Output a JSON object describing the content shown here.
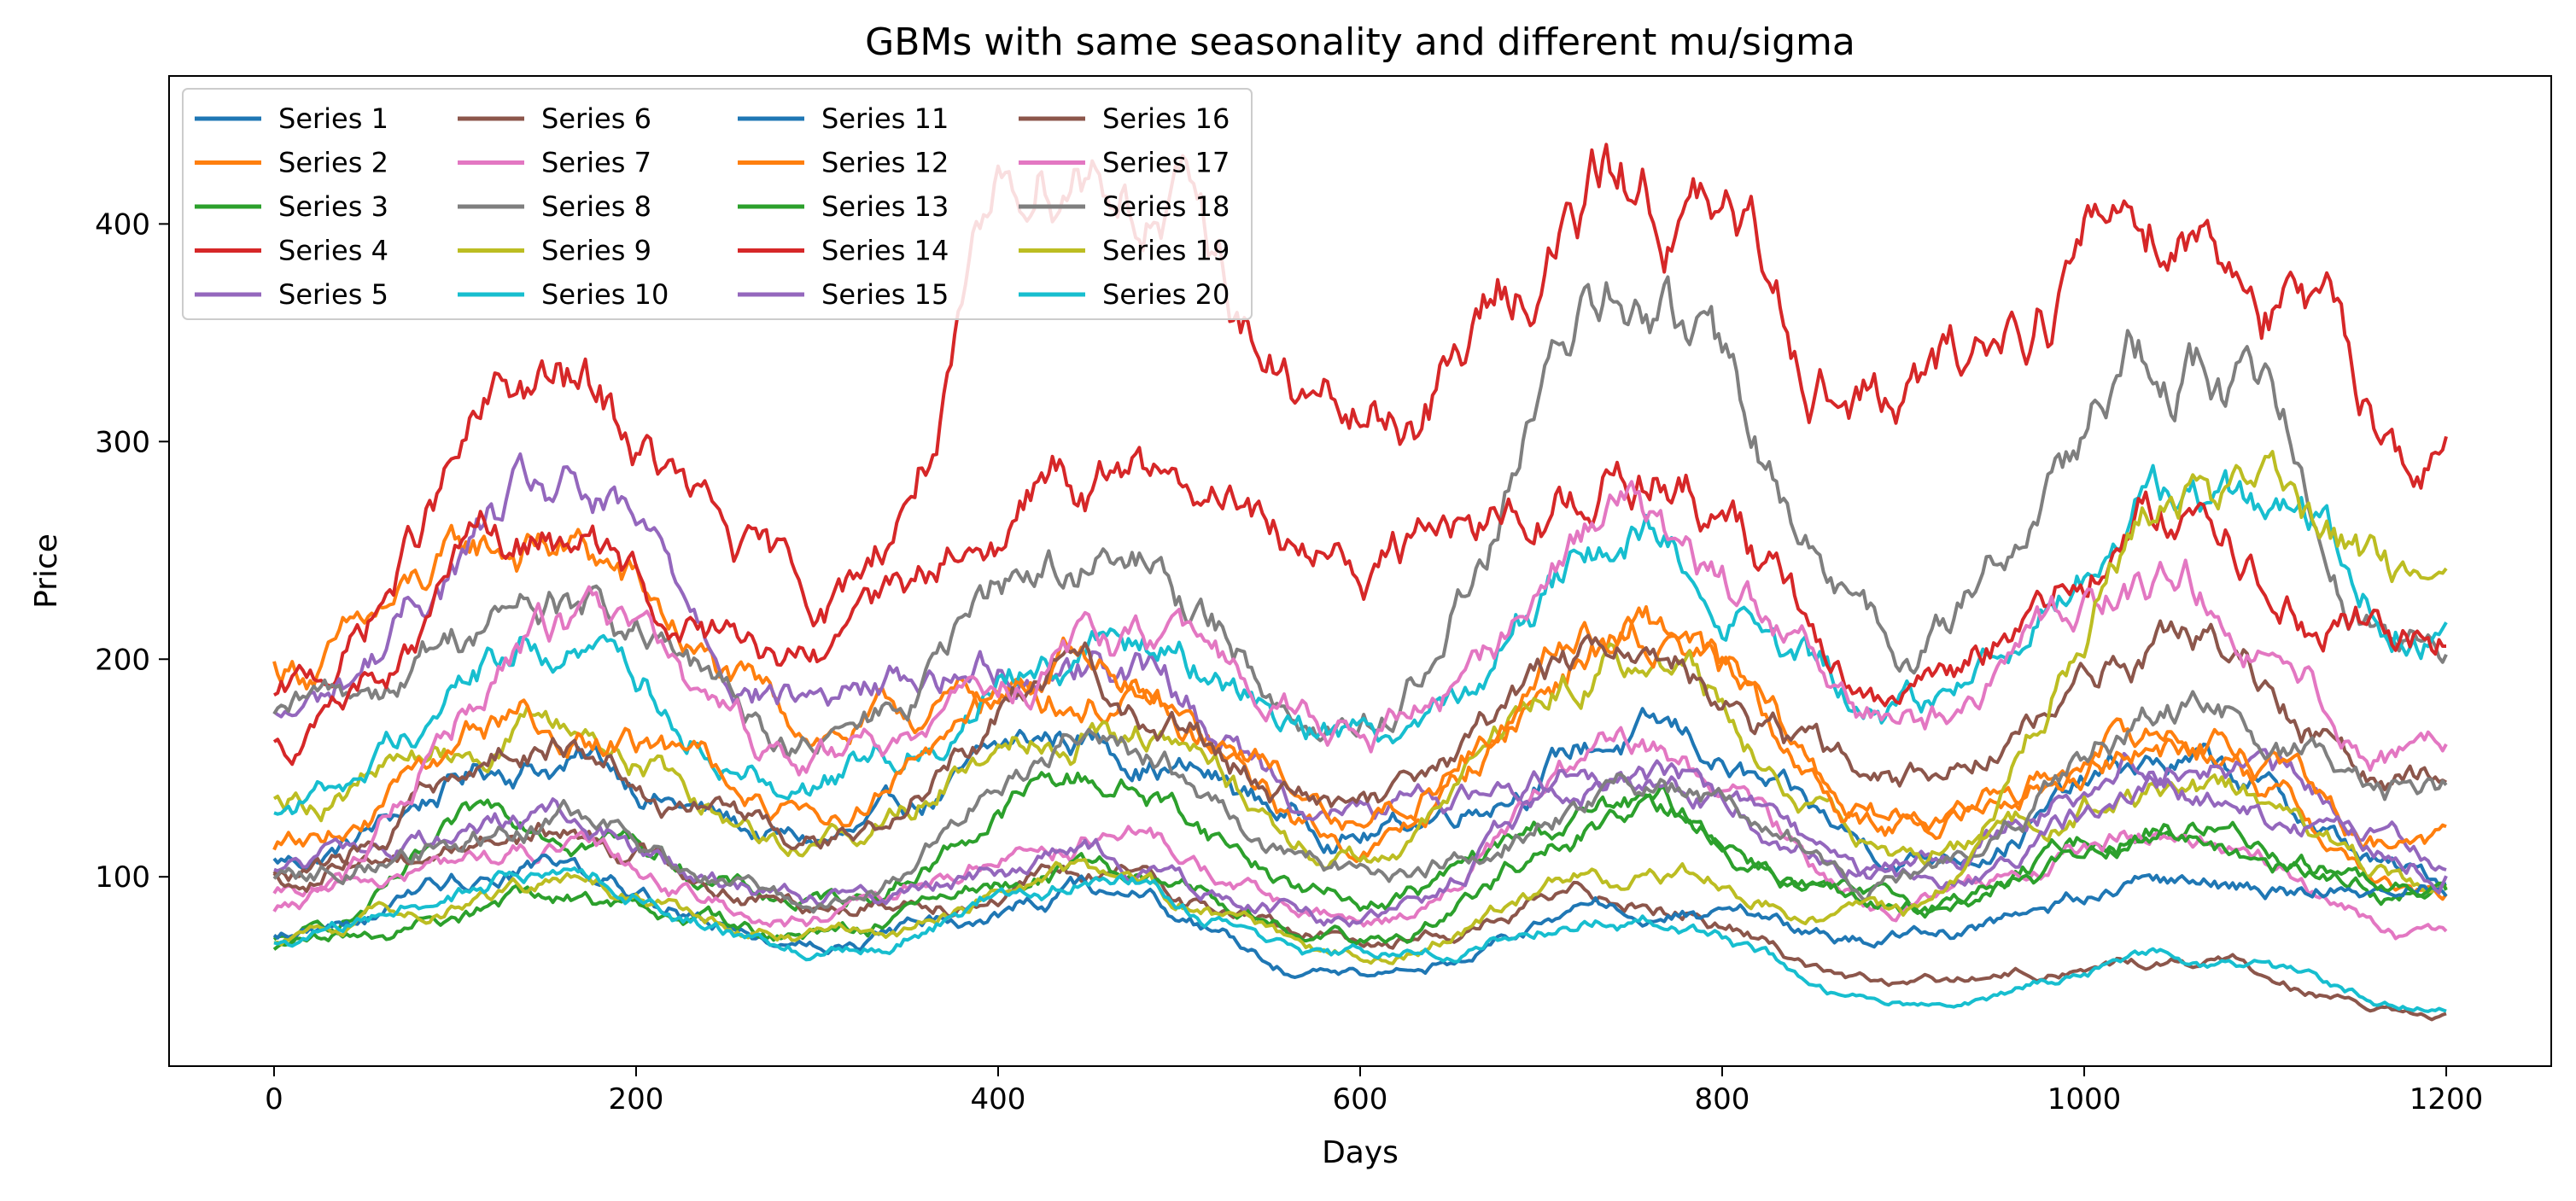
{
  "chart_data": {
    "type": "line",
    "title": "GBMs with same seasonality and different mu/sigma",
    "xlabel": "Days",
    "ylabel": "Price",
    "xlim": [
      -58,
      1258
    ],
    "ylim": [
      13,
      468
    ],
    "xticks": [
      0,
      200,
      400,
      600,
      800,
      1000,
      1200
    ],
    "yticks": [
      100,
      200,
      300,
      400
    ],
    "grid": false,
    "legend": "top-left",
    "legend_columns": 4,
    "series": [
      {
        "name": "Series 1",
        "color": "#1f77b4",
        "x": [
          0,
          150,
          300,
          450,
          600,
          750,
          900,
          1050,
          1200
        ],
        "y": [
          107,
          155,
          115,
          162,
          122,
          165,
          110,
          150,
          97
        ]
      },
      {
        "name": "Series 2",
        "color": "#ff7f0e",
        "x": [
          0,
          150,
          300,
          450,
          600,
          750,
          900,
          1050,
          1200
        ],
        "y": [
          196,
          250,
          168,
          185,
          115,
          210,
          125,
          165,
          88
        ]
      },
      {
        "name": "Series 3",
        "color": "#2ca02c",
        "x": [
          0,
          150,
          300,
          450,
          600,
          750,
          900,
          1050,
          1200
        ],
        "y": [
          70,
          128,
          88,
          145,
          90,
          130,
          85,
          125,
          93
        ]
      },
      {
        "name": "Series 4",
        "color": "#d62728",
        "x": [
          0,
          150,
          300,
          450,
          600,
          750,
          900,
          1050,
          1200
        ],
        "y": [
          180,
          318,
          225,
          440,
          305,
          415,
          320,
          415,
          292
        ]
      },
      {
        "name": "Series 5",
        "color": "#9467bd",
        "x": [
          0,
          150,
          300,
          450,
          600,
          750,
          900,
          1050,
          1200
        ],
        "y": [
          172,
          268,
          185,
          205,
          130,
          150,
          105,
          160,
          113
        ]
      },
      {
        "name": "Series 6",
        "color": "#8c564b",
        "x": [
          0,
          150,
          300,
          450,
          600,
          750,
          900,
          1050,
          1200
        ],
        "y": [
          100,
          122,
          90,
          100,
          72,
          92,
          50,
          62,
          35
        ]
      },
      {
        "name": "Series 7",
        "color": "#e377c2",
        "x": [
          0,
          150,
          300,
          450,
          600,
          750,
          900,
          1050,
          1200
        ],
        "y": [
          90,
          110,
          80,
          120,
          78,
          155,
          90,
          120,
          68
        ]
      },
      {
        "name": "Series 8",
        "color": "#7f7f7f",
        "x": [
          0,
          150,
          300,
          450,
          600,
          750,
          900,
          1050,
          1200
        ],
        "y": [
          170,
          225,
          160,
          245,
          175,
          360,
          205,
          345,
          212
        ]
      },
      {
        "name": "Series 9",
        "color": "#bcbd22",
        "x": [
          0,
          150,
          300,
          450,
          600,
          750,
          900,
          1050,
          1200
        ],
        "y": [
          140,
          170,
          120,
          180,
          110,
          205,
          110,
          140,
          95
        ]
      },
      {
        "name": "Series 10",
        "color": "#17becf",
        "x": [
          0,
          150,
          300,
          450,
          600,
          750,
          900,
          1050,
          1200
        ],
        "y": [
          133,
          205,
          150,
          210,
          170,
          258,
          175,
          270,
          230
        ]
      },
      {
        "name": "Series 11",
        "color": "#1f77b4",
        "x": [
          0,
          150,
          300,
          450,
          600,
          750,
          900,
          1050,
          1200
        ],
        "y": [
          75,
          105,
          70,
          92,
          53,
          85,
          72,
          95,
          97
        ]
      },
      {
        "name": "Series 12",
        "color": "#ff7f0e",
        "x": [
          0,
          150,
          300,
          450,
          600,
          750,
          900,
          1050,
          1200
        ],
        "y": [
          115,
          170,
          130,
          195,
          130,
          215,
          130,
          160,
          110
        ]
      },
      {
        "name": "Series 13",
        "color": "#2ca02c",
        "x": [
          0,
          150,
          300,
          450,
          600,
          750,
          900,
          1050,
          1200
        ],
        "y": [
          68,
          90,
          72,
          100,
          75,
          125,
          85,
          115,
          90
        ]
      },
      {
        "name": "Series 14",
        "color": "#d62728",
        "x": [
          0,
          150,
          300,
          450,
          600,
          750,
          900,
          1050,
          1200
        ],
        "y": [
          165,
          250,
          190,
          280,
          250,
          295,
          185,
          265,
          212
        ]
      },
      {
        "name": "Series 15",
        "color": "#9467bd",
        "x": [
          0,
          150,
          300,
          450,
          600,
          750,
          900,
          1050,
          1200
        ],
        "y": [
          105,
          125,
          90,
          105,
          80,
          150,
          95,
          140,
          110
        ]
      },
      {
        "name": "Series 16",
        "color": "#8c564b",
        "x": [
          0,
          150,
          300,
          450,
          600,
          750,
          900,
          1050,
          1200
        ],
        "y": [
          103,
          160,
          120,
          190,
          130,
          200,
          140,
          205,
          145
        ]
      },
      {
        "name": "Series 17",
        "color": "#e377c2",
        "x": [
          0,
          150,
          300,
          450,
          600,
          750,
          900,
          1050,
          1200
        ],
        "y": [
          85,
          210,
          150,
          200,
          165,
          255,
          170,
          235,
          155
        ]
      },
      {
        "name": "Series 18",
        "color": "#7f7f7f",
        "x": [
          0,
          150,
          300,
          450,
          600,
          750,
          900,
          1050,
          1200
        ],
        "y": [
          100,
          125,
          85,
          160,
          105,
          140,
          100,
          175,
          140
        ]
      },
      {
        "name": "Series 19",
        "color": "#bcbd22",
        "x": [
          0,
          150,
          300,
          450,
          600,
          750,
          900,
          1050,
          1200
        ],
        "y": [
          70,
          95,
          70,
          95,
          65,
          100,
          80,
          275,
          220
        ]
      },
      {
        "name": "Series 20",
        "color": "#17becf",
        "x": [
          0,
          150,
          300,
          450,
          600,
          750,
          900,
          1050,
          1200
        ],
        "y": [
          70,
          100,
          65,
          100,
          62,
          80,
          42,
          62,
          40
        ]
      }
    ]
  }
}
